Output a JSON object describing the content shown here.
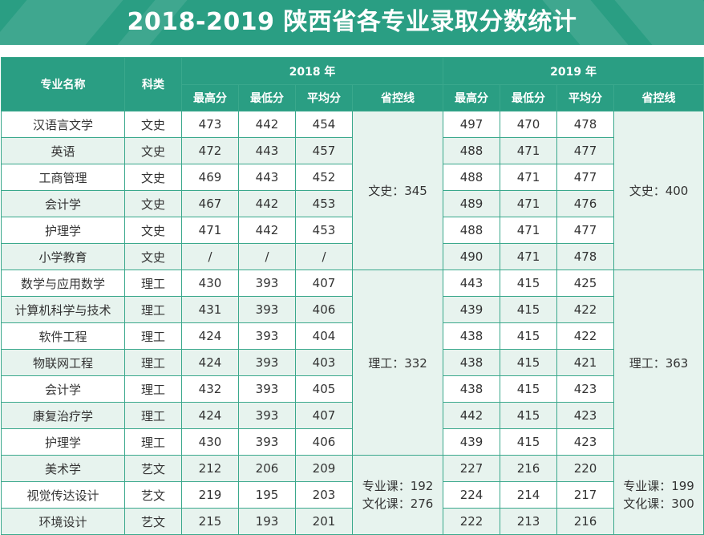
{
  "title": "2018-2019 陕西省各专业录取分数统计",
  "colors": {
    "brand": "#2a9e83",
    "row_alt": "#e7f3ee",
    "border": "#3aa88c"
  },
  "headers": {
    "major": "专业名称",
    "category": "科类",
    "year_2018": "2018 年",
    "year_2019": "2019 年",
    "max": "最高分",
    "min": "最低分",
    "avg": "平均分",
    "control_line": "省控线"
  },
  "rows": [
    {
      "major": "汉语言文学",
      "cat": "文史",
      "a": [
        "473",
        "442",
        "454"
      ],
      "b": [
        "497",
        "470",
        "478"
      ]
    },
    {
      "major": "英语",
      "cat": "文史",
      "a": [
        "472",
        "443",
        "457"
      ],
      "b": [
        "488",
        "471",
        "477"
      ]
    },
    {
      "major": "工商管理",
      "cat": "文史",
      "a": [
        "469",
        "443",
        "452"
      ],
      "b": [
        "488",
        "471",
        "477"
      ]
    },
    {
      "major": "会计学",
      "cat": "文史",
      "a": [
        "467",
        "442",
        "453"
      ],
      "b": [
        "489",
        "471",
        "476"
      ]
    },
    {
      "major": "护理学",
      "cat": "文史",
      "a": [
        "471",
        "442",
        "453"
      ],
      "b": [
        "488",
        "471",
        "477"
      ]
    },
    {
      "major": "小学教育",
      "cat": "文史",
      "a": [
        "/",
        "/",
        "/"
      ],
      "b": [
        "490",
        "471",
        "478"
      ]
    },
    {
      "major": "数学与应用数学",
      "cat": "理工",
      "a": [
        "430",
        "393",
        "407"
      ],
      "b": [
        "443",
        "415",
        "425"
      ]
    },
    {
      "major": "计算机科学与技术",
      "cat": "理工",
      "a": [
        "431",
        "393",
        "406"
      ],
      "b": [
        "439",
        "415",
        "422"
      ]
    },
    {
      "major": "软件工程",
      "cat": "理工",
      "a": [
        "424",
        "393",
        "404"
      ],
      "b": [
        "438",
        "415",
        "422"
      ]
    },
    {
      "major": "物联网工程",
      "cat": "理工",
      "a": [
        "424",
        "393",
        "403"
      ],
      "b": [
        "438",
        "415",
        "421"
      ]
    },
    {
      "major": "会计学",
      "cat": "理工",
      "a": [
        "432",
        "393",
        "405"
      ],
      "b": [
        "438",
        "415",
        "423"
      ]
    },
    {
      "major": "康复治疗学",
      "cat": "理工",
      "a": [
        "424",
        "393",
        "407"
      ],
      "b": [
        "442",
        "415",
        "423"
      ]
    },
    {
      "major": "护理学",
      "cat": "理工",
      "a": [
        "430",
        "393",
        "406"
      ],
      "b": [
        "439",
        "415",
        "423"
      ]
    },
    {
      "major": "美术学",
      "cat": "艺文",
      "a": [
        "212",
        "206",
        "209"
      ],
      "b": [
        "227",
        "216",
        "220"
      ]
    },
    {
      "major": "视觉传达设计",
      "cat": "艺文",
      "a": [
        "219",
        "195",
        "203"
      ],
      "b": [
        "224",
        "214",
        "217"
      ]
    },
    {
      "major": "环境设计",
      "cat": "艺文",
      "a": [
        "215",
        "193",
        "201"
      ],
      "b": [
        "222",
        "213",
        "216"
      ]
    }
  ],
  "control_2018": {
    "wenshi": "文史：345",
    "ligong": "理工：332",
    "yiwen_1": "专业课：192",
    "yiwen_2": "文化课：276"
  },
  "control_2019": {
    "wenshi": "文史：400",
    "ligong": "理工：363",
    "yiwen_1": "专业课：199",
    "yiwen_2": "文化课：300"
  }
}
